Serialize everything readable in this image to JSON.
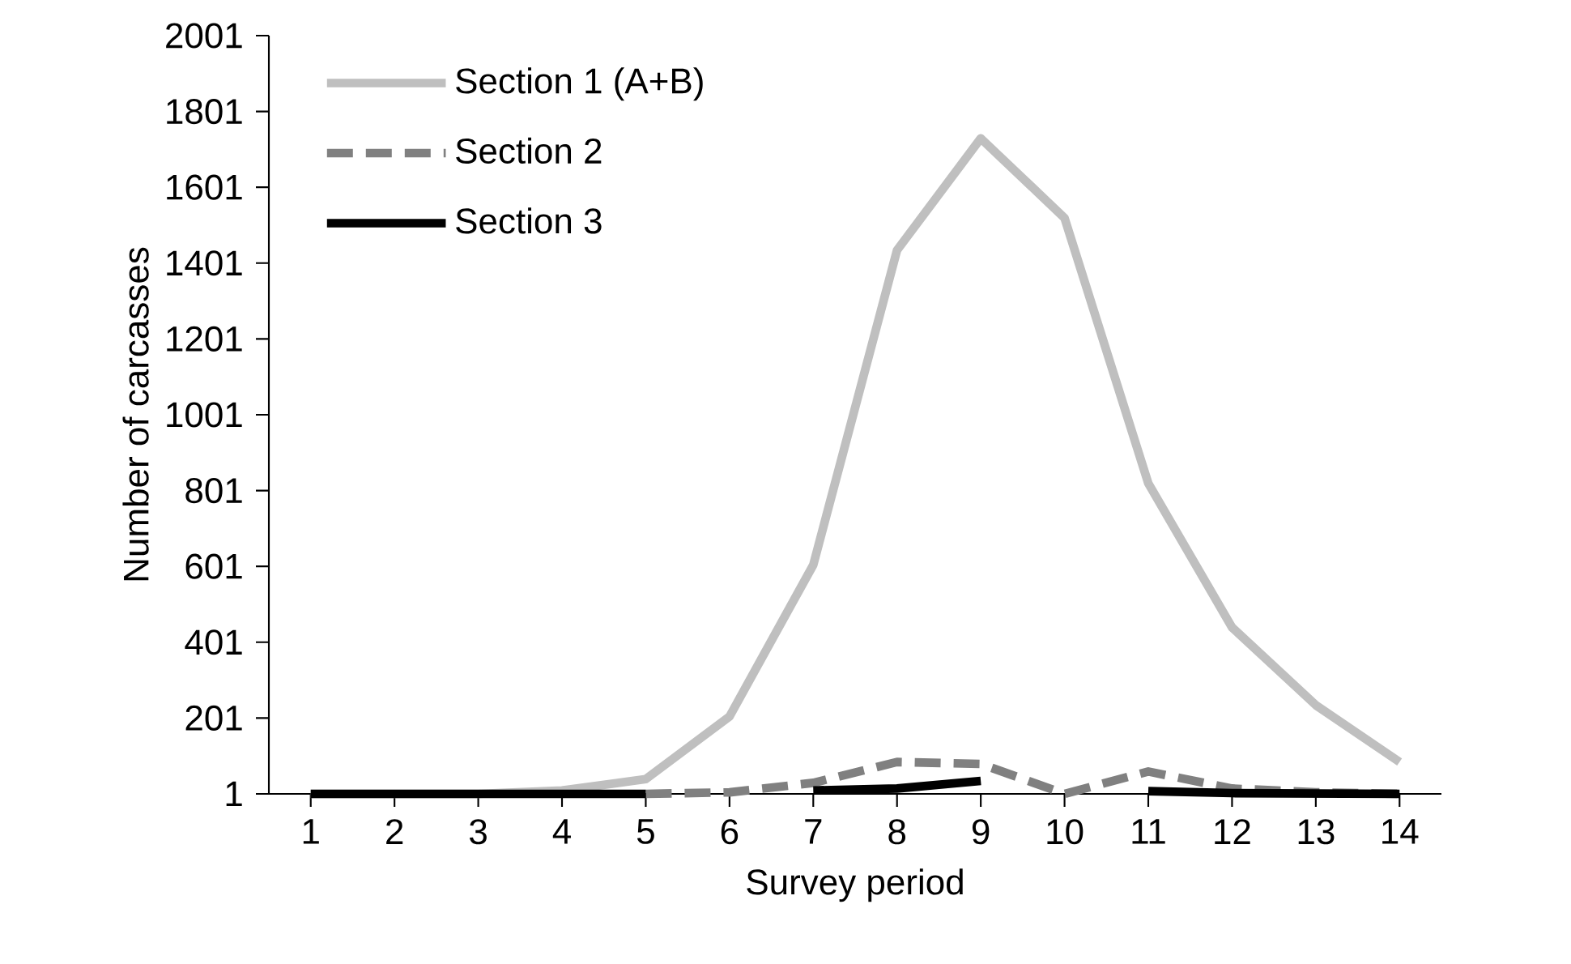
{
  "chart_data": {
    "type": "line",
    "xlabel": "Survey period",
    "ylabel": "Number of carcasses",
    "categories": [
      "1",
      "2",
      "3",
      "4",
      "5",
      "6",
      "7",
      "8",
      "9",
      "10",
      "11",
      "12",
      "13",
      "14"
    ],
    "series": [
      {
        "name": "Section 1 (A+B)",
        "color": "#bfbfbf",
        "line_style": "solid",
        "values": [
          1,
          1,
          1,
          10,
          40,
          205,
          605,
          1435,
          1730,
          1520,
          820,
          440,
          235,
          85
        ]
      },
      {
        "name": "Section 2",
        "color": "#808080",
        "line_style": "dashed",
        "values": [
          null,
          null,
          null,
          null,
          1,
          5,
          30,
          85,
          80,
          1,
          60,
          15,
          5,
          1
        ]
      },
      {
        "name": "Section 3",
        "color": "#000000",
        "line_style": "solid",
        "values": [
          1,
          1,
          1,
          1,
          1,
          null,
          10,
          15,
          35,
          null,
          8,
          3,
          2,
          1
        ]
      }
    ],
    "ylim": [
      1,
      2001
    ],
    "yticks": [
      1,
      201,
      401,
      601,
      801,
      1001,
      1201,
      1401,
      1601,
      1801,
      2001
    ],
    "grid": false,
    "legend": "top left",
    "marker": "none"
  }
}
